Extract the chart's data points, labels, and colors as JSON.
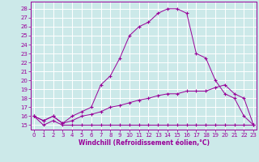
{
  "xlabel": "Windchill (Refroidissement éolien,°C)",
  "background_color": "#cce9e9",
  "grid_color": "#ffffff",
  "line_color": "#990099",
  "x_ticks": [
    0,
    1,
    2,
    3,
    4,
    5,
    6,
    7,
    8,
    9,
    10,
    11,
    12,
    13,
    14,
    15,
    16,
    17,
    18,
    19,
    20,
    21,
    22,
    23
  ],
  "ylim": [
    14.5,
    28.8
  ],
  "xlim": [
    -0.3,
    23.3
  ],
  "y_ticks": [
    15,
    16,
    17,
    18,
    19,
    20,
    21,
    22,
    23,
    24,
    25,
    26,
    27,
    28
  ],
  "line1_x": [
    0,
    1,
    2,
    3,
    4,
    5,
    6,
    7,
    8,
    9,
    10,
    11,
    12,
    13,
    14,
    15,
    16,
    17,
    18,
    19,
    20,
    21,
    22,
    23
  ],
  "line1_y": [
    16.0,
    15.0,
    15.5,
    15.0,
    15.0,
    15.0,
    15.0,
    15.0,
    15.0,
    15.0,
    15.0,
    15.0,
    15.0,
    15.0,
    15.0,
    15.0,
    15.0,
    15.0,
    15.0,
    15.0,
    15.0,
    15.0,
    15.0,
    15.0
  ],
  "line2_x": [
    0,
    1,
    2,
    3,
    4,
    5,
    6,
    7,
    8,
    9,
    10,
    11,
    12,
    13,
    14,
    15,
    16,
    17,
    18,
    19,
    20,
    21,
    22,
    23
  ],
  "line2_y": [
    16.0,
    15.5,
    16.0,
    15.2,
    15.5,
    16.0,
    16.2,
    16.5,
    17.0,
    17.2,
    17.5,
    17.8,
    18.0,
    18.3,
    18.5,
    18.5,
    18.8,
    18.8,
    18.8,
    19.2,
    19.5,
    18.5,
    18.0,
    15.0
  ],
  "line3_x": [
    0,
    1,
    2,
    3,
    4,
    5,
    6,
    7,
    8,
    9,
    10,
    11,
    12,
    13,
    14,
    15,
    16,
    17,
    18,
    19,
    20,
    21,
    22,
    23
  ],
  "line3_y": [
    16.0,
    15.5,
    16.0,
    15.2,
    16.0,
    16.5,
    17.0,
    19.5,
    20.5,
    22.5,
    25.0,
    26.0,
    26.5,
    27.5,
    28.0,
    28.0,
    27.5,
    23.0,
    22.5,
    20.0,
    18.5,
    18.0,
    16.0,
    15.0
  ],
  "tick_labelsize": 5,
  "xlabel_fontsize": 5.5
}
